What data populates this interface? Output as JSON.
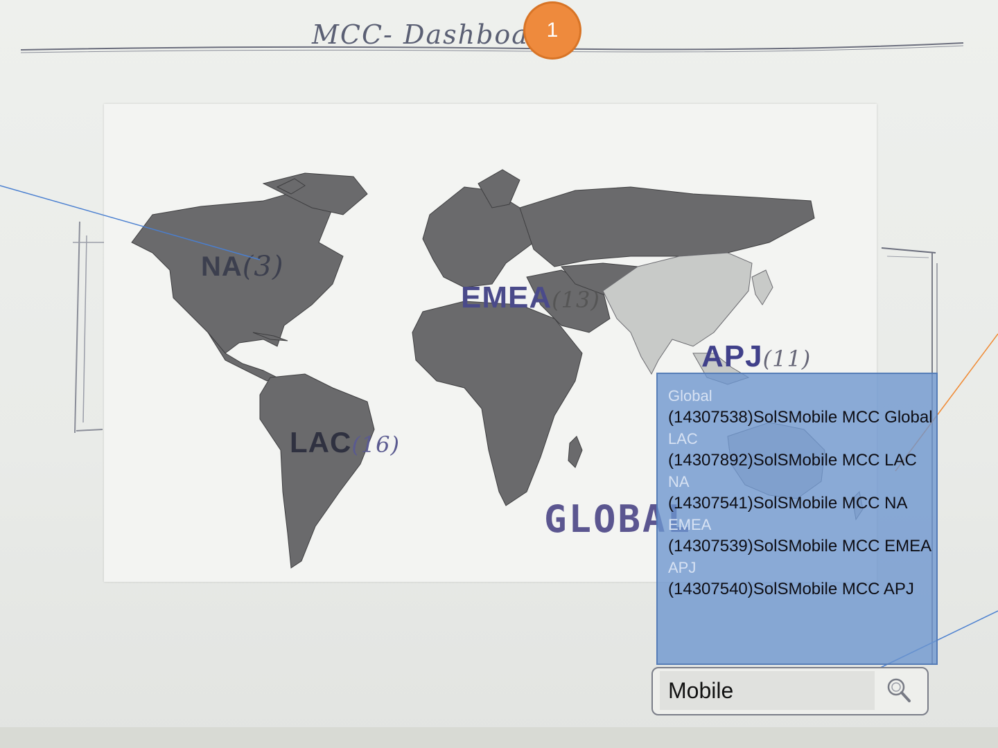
{
  "header": {
    "title": "MCC- Dashboards",
    "step_badge": "1"
  },
  "map": {
    "regions": [
      {
        "id": "na",
        "label": "NA",
        "count": "(3)"
      },
      {
        "id": "emea",
        "label": "EMEA",
        "count": "(13)"
      },
      {
        "id": "apj",
        "label": "APJ",
        "count": "(11)"
      },
      {
        "id": "lac",
        "label": "LAC",
        "count": "(16)"
      },
      {
        "id": "global",
        "label": "GLOBAL",
        "count": ""
      }
    ],
    "colors": {
      "land_dark": "#6a6a6c",
      "land_light": "#c8cac8",
      "borders": "#3e3e40"
    }
  },
  "results": {
    "groups": [
      {
        "label": "Global",
        "item": "(14307538)SolSMobile  MCC Global"
      },
      {
        "label": "LAC",
        "item": "(14307892)SolSMobile  MCC LAC"
      },
      {
        "label": "NA",
        "item": "(14307541)SolSMobile  MCC NA"
      },
      {
        "label": "EMEA",
        "item": "(14307539)SolSMobile  MCC EMEA"
      },
      {
        "label": "APJ",
        "item": "(14307540)SolSMobile  MCC APJ"
      }
    ],
    "colors": {
      "panel": "#6c95ce",
      "group_label": "#d7e2f3"
    }
  },
  "search": {
    "value": "Mobile",
    "icon": "search-icon"
  },
  "colors": {
    "badge": "#ee8a3d",
    "annotation_blue": "#4a7fd0",
    "annotation_orange": "#f08a33"
  }
}
